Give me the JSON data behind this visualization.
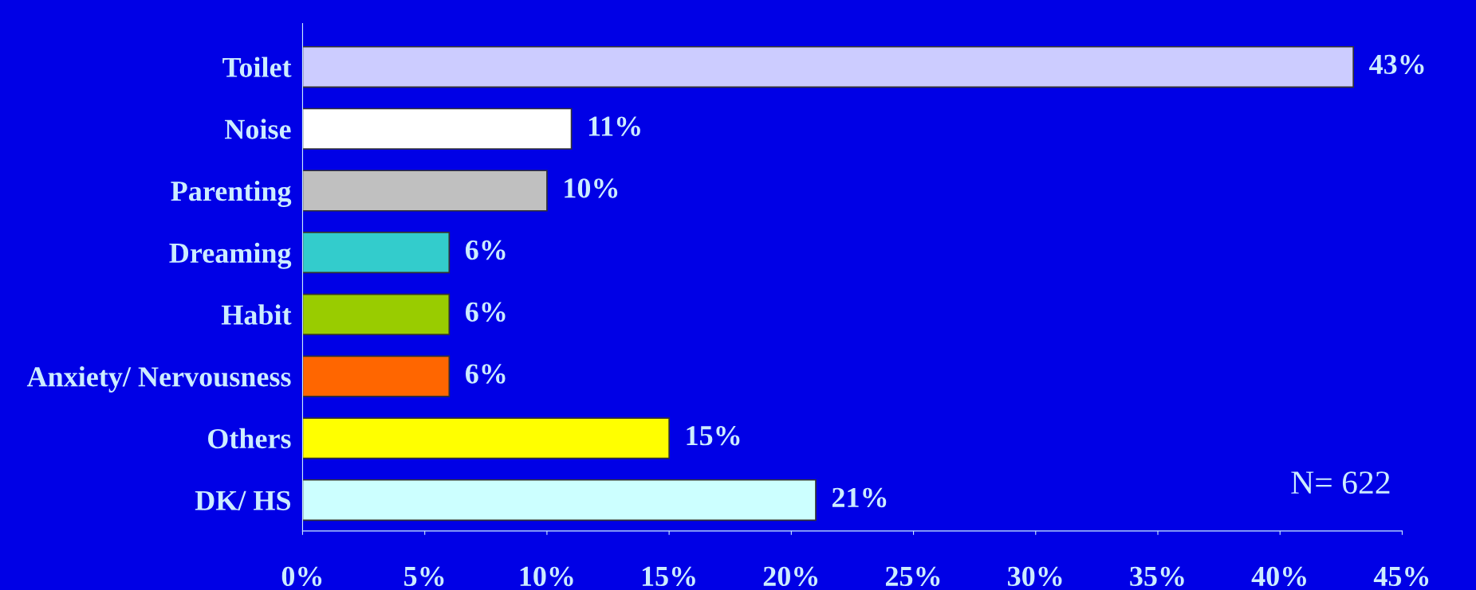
{
  "chart_data": {
    "type": "bar",
    "orientation": "horizontal",
    "categories": [
      "Toilet",
      "Noise",
      "Parenting",
      "Dreaming",
      "Habit",
      "Anxiety/ Nervousness",
      "Others",
      "DK/ HS"
    ],
    "values": [
      43,
      11,
      10,
      6,
      6,
      6,
      15,
      21
    ],
    "colors": [
      "#ccccff",
      "#ffffff",
      "#c0c0c0",
      "#33cccc",
      "#99cc00",
      "#ff6600",
      "#ffff00",
      "#ccffff"
    ],
    "value_labels": [
      "43%",
      "11%",
      "10%",
      "6%",
      "6%",
      "6%",
      "15%",
      "21%"
    ],
    "xlim": [
      0,
      45
    ],
    "xticks": [
      {
        "value": 0,
        "label": "0%"
      },
      {
        "value": 5,
        "label": "5%"
      },
      {
        "value": 10,
        "label": "10%"
      },
      {
        "value": 15,
        "label": "15%"
      },
      {
        "value": 20,
        "label": "20%"
      },
      {
        "value": 25,
        "label": "25%"
      },
      {
        "value": 30,
        "label": "30%"
      },
      {
        "value": 35,
        "label": "35%"
      },
      {
        "value": 40,
        "label": "40%"
      },
      {
        "value": 45,
        "label": "45%"
      }
    ],
    "annotations": [
      "N= 622"
    ],
    "grid": false,
    "legend": false
  }
}
